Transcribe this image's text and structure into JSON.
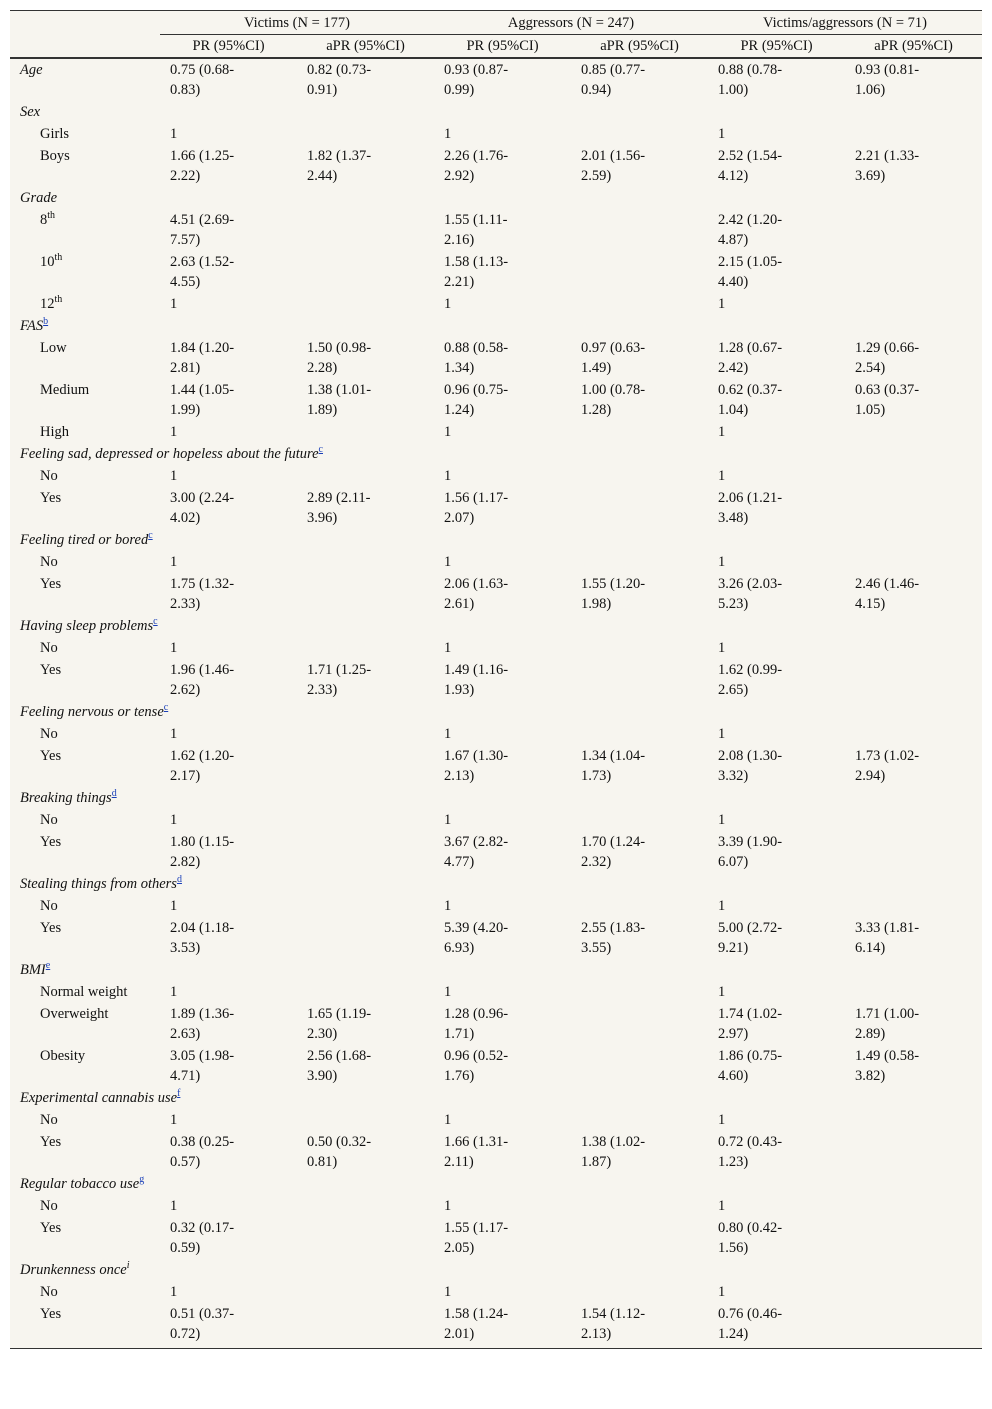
{
  "table": {
    "groups": [
      "Victims (N = 177)",
      "Aggressors (N = 247)",
      "Victims/aggressors (N = 71)"
    ],
    "columns": [
      "PR (95%CI)",
      "aPR (95%CI)",
      "PR (95%CI)",
      "aPR (95%CI)",
      "PR (95%CI)",
      "aPR (95%CI)"
    ],
    "sections": [
      {
        "title": "Age",
        "cells": [
          "0.75 (0.68-0.83)",
          "0.82 (0.73-0.91)",
          "0.93 (0.87-0.99)",
          "0.85 (0.77-0.94)",
          "0.88 (0.78-1.00)",
          "0.93 (0.81-1.06)"
        ]
      },
      {
        "title": "Sex",
        "rows": [
          {
            "label": "Girls",
            "cells": [
              "1",
              null,
              "1",
              null,
              "1",
              null
            ]
          },
          {
            "label": "Boys",
            "cells": [
              "1.66 (1.25-2.22)",
              "1.82 (1.37-2.44)",
              "2.26 (1.76-2.92)",
              "2.01 (1.56-2.59)",
              "2.52 (1.54-4.12)",
              "2.21 (1.33-3.69)"
            ]
          }
        ]
      },
      {
        "title": "Grade",
        "rows": [
          {
            "label": "8",
            "sup": "th",
            "cells": [
              "4.51 (2.69-7.57)",
              null,
              "1.55 (1.11-2.16)",
              null,
              "2.42 (1.20-4.87)",
              null
            ]
          },
          {
            "label": "10",
            "sup": "th",
            "cells": [
              "2.63 (1.52-4.55)",
              null,
              "1.58 (1.13-2.21)",
              null,
              "2.15 (1.05-4.40)",
              null
            ]
          },
          {
            "label": "12",
            "sup": "th",
            "cells": [
              "1",
              null,
              "1",
              null,
              "1",
              null
            ]
          }
        ]
      },
      {
        "title": "FAS",
        "note": "b",
        "rows": [
          {
            "label": "Low",
            "cells": [
              "1.84 (1.20-2.81)",
              "1.50 (0.98-2.28)",
              "0.88 (0.58-1.34)",
              "0.97 (0.63-1.49)",
              "1.28 (0.67-2.42)",
              "1.29 (0.66-2.54)"
            ]
          },
          {
            "label": "Medium",
            "cells": [
              "1.44 (1.05-1.99)",
              "1.38 (1.01-1.89)",
              "0.96 (0.75-1.24)",
              "1.00 (0.78-1.28)",
              "0.62 (0.37-1.04)",
              "0.63 (0.37-1.05)"
            ]
          },
          {
            "label": "High",
            "cells": [
              "1",
              null,
              "1",
              null,
              "1",
              null
            ]
          }
        ]
      },
      {
        "title": "Feeling sad, depressed or hopeless about the future",
        "note": "c",
        "rows": [
          {
            "label": "No",
            "cells": [
              "1",
              null,
              "1",
              null,
              "1",
              null
            ]
          },
          {
            "label": "Yes",
            "cells": [
              "3.00 (2.24-4.02)",
              "2.89 (2.11-3.96)",
              "1.56 (1.17-2.07)",
              null,
              "2.06 (1.21-3.48)",
              null
            ]
          }
        ]
      },
      {
        "title": "Feeling tired or bored",
        "note": "c",
        "rows": [
          {
            "label": "No",
            "cells": [
              "1",
              null,
              "1",
              null,
              "1",
              null
            ]
          },
          {
            "label": "Yes",
            "cells": [
              "1.75 (1.32-2.33)",
              null,
              "2.06 (1.63-2.61)",
              "1.55 (1.20-1.98)",
              "3.26 (2.03-5.23)",
              "2.46 (1.46-4.15)"
            ]
          }
        ]
      },
      {
        "title": "Having sleep problems",
        "note": "c",
        "rows": [
          {
            "label": "No",
            "cells": [
              "1",
              null,
              "1",
              null,
              "1",
              null
            ]
          },
          {
            "label": "Yes",
            "cells": [
              "1.96 (1.46-2.62)",
              "1.71 (1.25-2.33)",
              "1.49 (1.16-1.93)",
              null,
              "1.62 (0.99-2.65)",
              null
            ]
          }
        ]
      },
      {
        "title": "Feeling nervous or tense",
        "note": "c",
        "rows": [
          {
            "label": "No",
            "cells": [
              "1",
              null,
              "1",
              null,
              "1",
              null
            ]
          },
          {
            "label": "Yes",
            "cells": [
              "1.62 (1.20-2.17)",
              null,
              "1.67 (1.30-2.13)",
              "1.34 (1.04-1.73)",
              "2.08 (1.30-3.32)",
              "1.73 (1.02-2.94)"
            ]
          }
        ]
      },
      {
        "title": "Breaking things",
        "note": "d",
        "rows": [
          {
            "label": "No",
            "cells": [
              "1",
              null,
              "1",
              null,
              "1",
              null
            ]
          },
          {
            "label": "Yes",
            "cells": [
              "1.80 (1.15-2.82)",
              null,
              "3.67 (2.82-4.77)",
              "1.70 (1.24-2.32)",
              "3.39 (1.90-6.07)",
              null
            ]
          }
        ]
      },
      {
        "title": "Stealing things from others",
        "note": "d",
        "rows": [
          {
            "label": "No",
            "cells": [
              "1",
              null,
              "1",
              null,
              "1",
              null
            ]
          },
          {
            "label": "Yes",
            "cells": [
              "2.04 (1.18-3.53)",
              null,
              "5.39 (4.20-6.93)",
              "2.55 (1.83-3.55)",
              "5.00 (2.72-9.21)",
              "3.33 (1.81-6.14)"
            ]
          }
        ]
      },
      {
        "title": "BMI",
        "note": "e",
        "rows": [
          {
            "label": "Normal weight",
            "cells": [
              "1",
              null,
              "1",
              null,
              "1",
              null
            ]
          },
          {
            "label": "Overweight",
            "cells": [
              "1.89 (1.36-2.63)",
              "1.65 (1.19-2.30)",
              "1.28 (0.96-1.71)",
              null,
              "1.74 (1.02-2.97)",
              "1.71 (1.00-2.89)"
            ]
          },
          {
            "label": "Obesity",
            "cells": [
              "3.05 (1.98-4.71)",
              "2.56 (1.68-3.90)",
              "0.96 (0.52-1.76)",
              null,
              "1.86 (0.75-4.60)",
              "1.49 (0.58-3.82)"
            ]
          }
        ]
      },
      {
        "title": "Experimental cannabis use",
        "note": "f",
        "rows": [
          {
            "label": "No",
            "cells": [
              "1",
              null,
              "1",
              null,
              "1",
              null
            ]
          },
          {
            "label": "Yes",
            "cells": [
              "0.38 (0.25-0.57)",
              "0.50 (0.32-0.81)",
              "1.66 (1.31-2.11)",
              "1.38 (1.02-1.87)",
              "0.72 (0.43-1.23)",
              null
            ]
          }
        ]
      },
      {
        "title": "Regular tobacco use",
        "note": "g",
        "rows": [
          {
            "label": "No",
            "cells": [
              "1",
              null,
              "1",
              null,
              "1",
              null
            ]
          },
          {
            "label": "Yes",
            "cells": [
              "0.32 (0.17-0.59)",
              null,
              "1.55 (1.17-2.05)",
              null,
              "0.80 (0.42-1.56)",
              null
            ]
          }
        ]
      },
      {
        "title": "Drunkenness once",
        "sup": "i",
        "rows": [
          {
            "label": "No",
            "cells": [
              "1",
              null,
              "1",
              null,
              "1",
              null
            ]
          },
          {
            "label": "Yes",
            "cells": [
              "0.51 (0.37-0.72)",
              null,
              "1.58 (1.24-2.01)",
              "1.54 (1.12-2.13)",
              "0.76 (0.46-1.24)",
              null
            ]
          }
        ]
      }
    ]
  }
}
